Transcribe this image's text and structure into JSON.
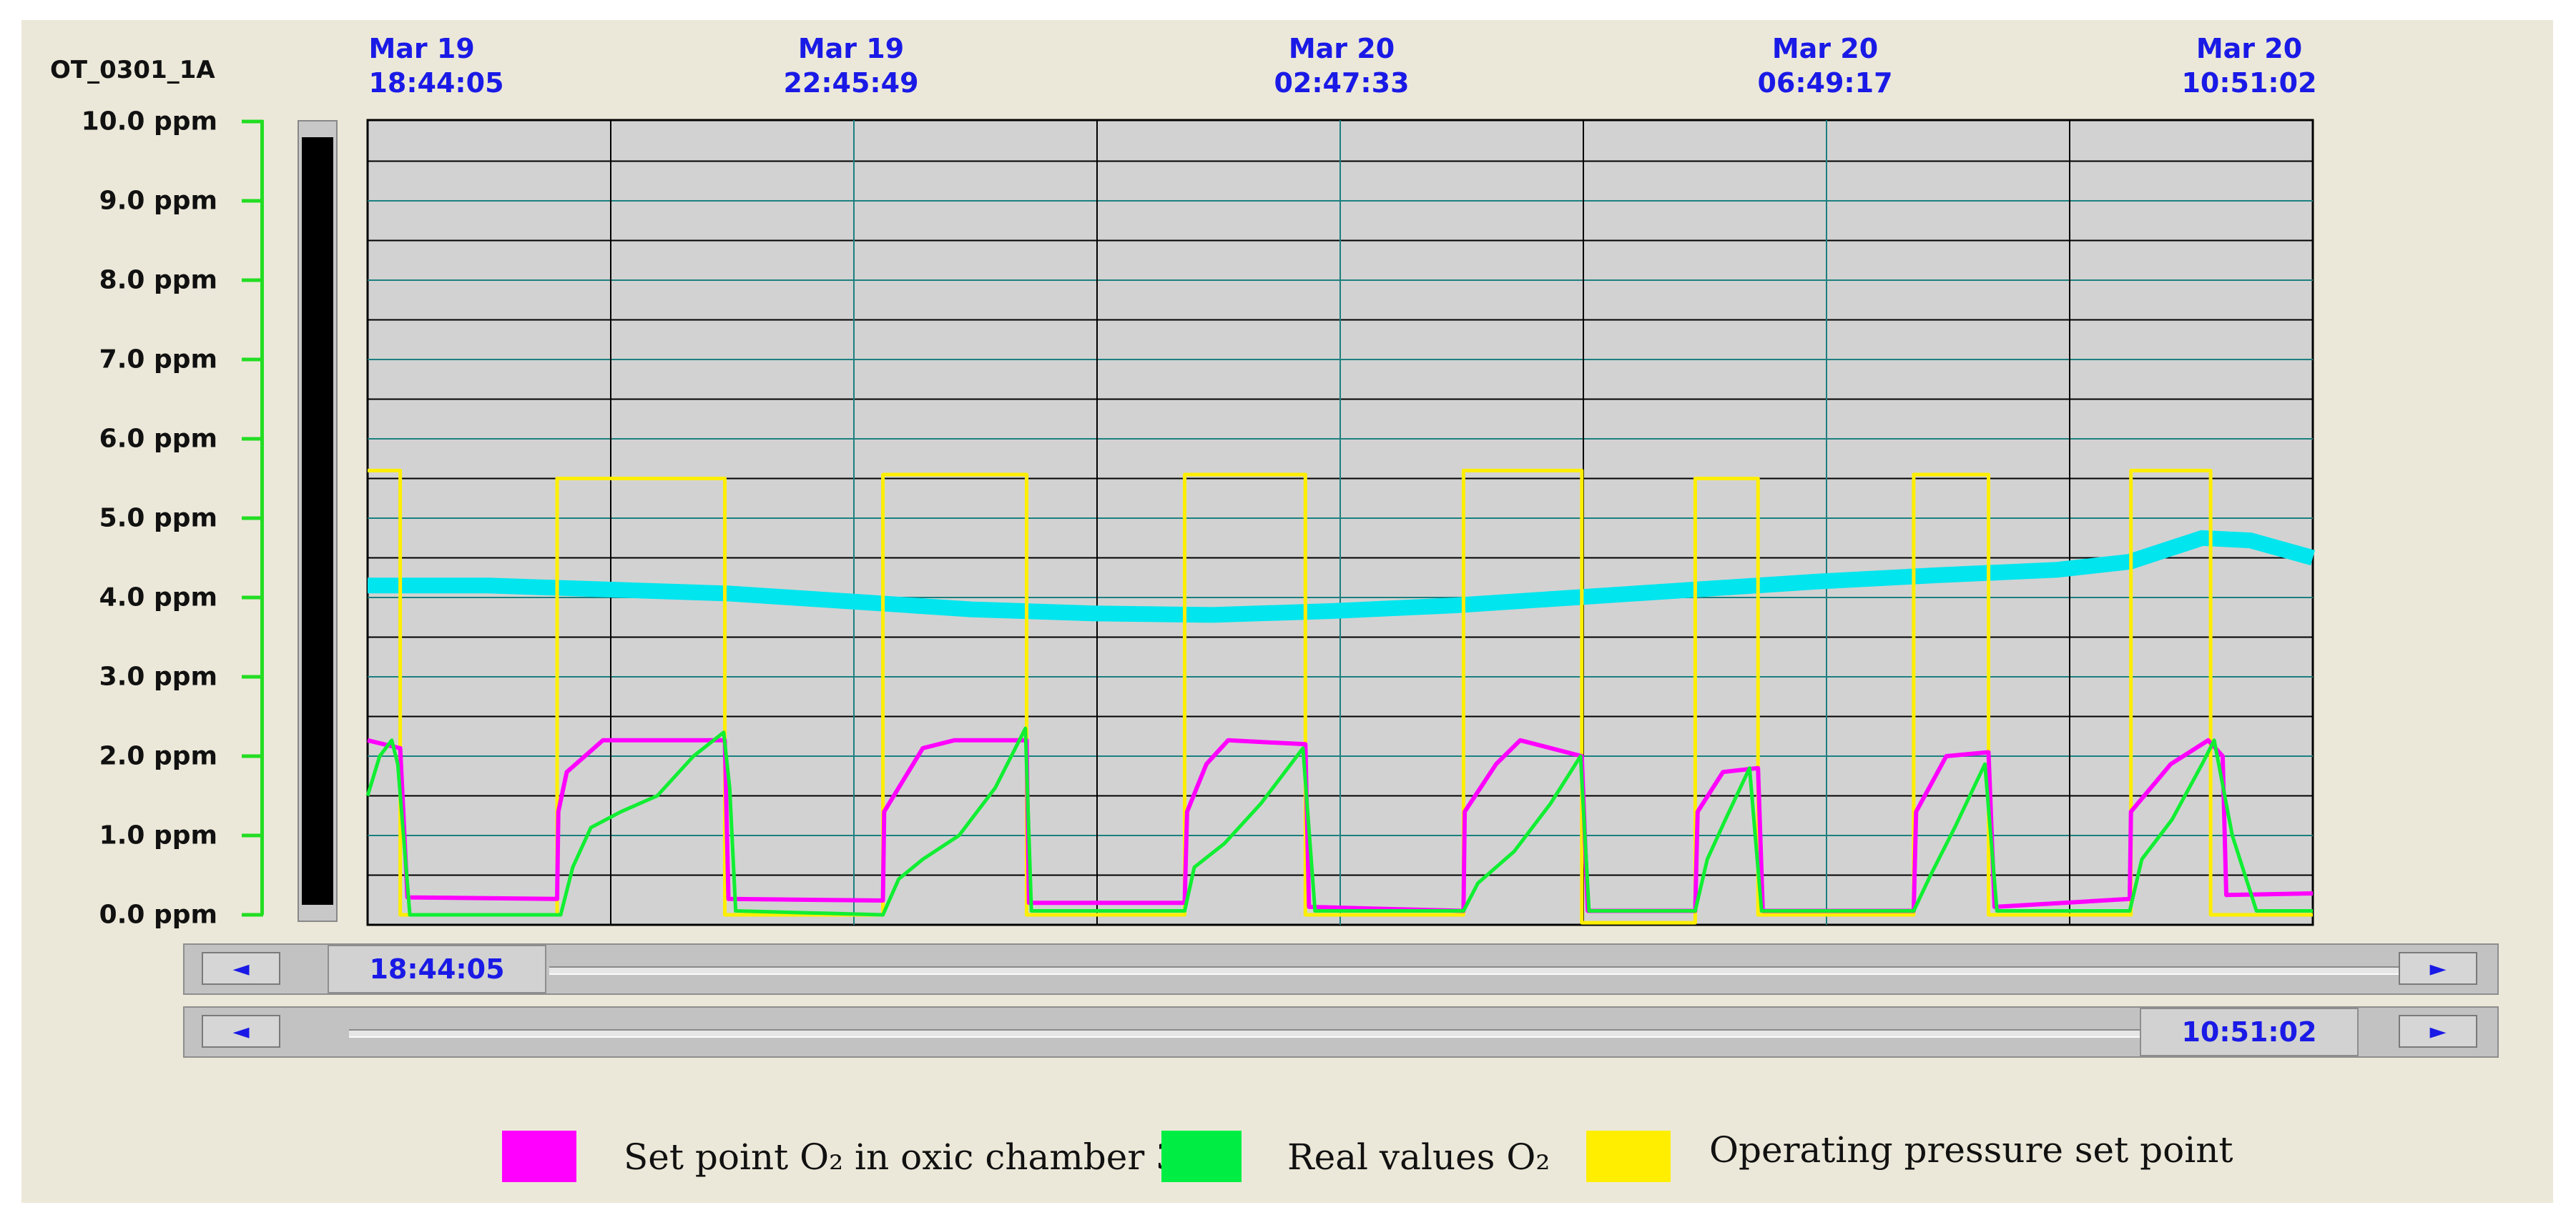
{
  "window": {
    "tag": "OT_0301_1A"
  },
  "y_axis_labels": [
    "10.0 ppm",
    "9.0 ppm",
    "8.0 ppm",
    "7.0 ppm",
    "6.0 ppm",
    "5.0 ppm",
    "4.0 ppm",
    "3.0 ppm",
    "2.0 ppm",
    "1.0 ppm",
    "0.0 ppm"
  ],
  "x_axis_labels": [
    {
      "date": "Mar 19",
      "time": "18:44:05"
    },
    {
      "date": "Mar 19",
      "time": "22:45:49"
    },
    {
      "date": "Mar 20",
      "time": "02:47:33"
    },
    {
      "date": "Mar 20",
      "time": "06:49:17"
    },
    {
      "date": "Mar 20",
      "time": "10:51:02"
    }
  ],
  "scroll_start": {
    "time": "18:44:05",
    "left_arrow": "◄",
    "right_arrow": "►"
  },
  "scroll_end": {
    "time": "10:51:02",
    "left_arrow": "◄",
    "right_arrow": "►"
  },
  "legend": [
    {
      "label": "Set point O₂ in oxic chamber 3",
      "color": "#ff00ff"
    },
    {
      "label": "Real values O₂",
      "color": "#00ee44"
    },
    {
      "label": "Operating pressure set point",
      "color": "#ffee00"
    }
  ],
  "chart_data": {
    "type": "line",
    "x_unit": "hours since Mar 19 18:44:05",
    "xlim": [
      0,
      16.117
    ],
    "ylim": [
      0,
      10
    ],
    "ylabel_unit": "ppm",
    "grid": true,
    "colors": {
      "background": "#d2d2d2",
      "cyan": "#00e5ee",
      "magenta": "#ff00ff",
      "green": "#11ee33",
      "yellow": "#ffee00"
    },
    "series": [
      {
        "name": "Operating pressure set point",
        "color": "#ffee00",
        "x": [
          0,
          0.27,
          0.27,
          1.57,
          1.57,
          2.96,
          2.96,
          4.27,
          4.27,
          5.46,
          5.46,
          6.77,
          6.77,
          7.77,
          7.77,
          9.08,
          9.08,
          10.06,
          10.06,
          11.0,
          11.0,
          11.52,
          11.52,
          12.81,
          12.81,
          13.43,
          13.43,
          14.61,
          14.61,
          15.27,
          15.27,
          16.117
        ],
        "values": [
          5.6,
          5.6,
          0.0,
          0.0,
          5.5,
          5.5,
          0.0,
          0.0,
          5.55,
          5.55,
          0.0,
          0.0,
          5.55,
          5.55,
          0.0,
          0.0,
          5.6,
          5.6,
          -0.1,
          -0.1,
          5.5,
          5.5,
          0.0,
          0.0,
          5.55,
          5.55,
          0.0,
          0.0,
          5.6,
          5.6,
          0.0,
          0.0
        ]
      },
      {
        "name": "Set point O₂ in oxic chamber 3",
        "color": "#ff00ff",
        "x": [
          0,
          0.27,
          0.33,
          1.57,
          1.58,
          1.65,
          1.95,
          2.96,
          2.99,
          4.27,
          4.28,
          4.6,
          4.86,
          5.46,
          5.48,
          6.77,
          6.79,
          6.95,
          7.13,
          7.77,
          7.8,
          9.08,
          9.09,
          9.35,
          9.55,
          10.06,
          10.11,
          11.0,
          11.02,
          11.23,
          11.52,
          11.56,
          12.81,
          12.83,
          13.08,
          13.43,
          13.48,
          14.6,
          14.61,
          14.94,
          15.25,
          15.37,
          15.4,
          16.117
        ],
        "values": [
          2.2,
          2.1,
          0.22,
          0.2,
          1.3,
          1.8,
          2.2,
          2.2,
          0.2,
          0.18,
          1.3,
          2.1,
          2.2,
          2.2,
          0.15,
          0.15,
          1.3,
          1.9,
          2.2,
          2.15,
          0.1,
          0.05,
          1.3,
          1.9,
          2.2,
          2.0,
          0.05,
          0.05,
          1.3,
          1.8,
          1.85,
          0.05,
          0.05,
          1.3,
          2.0,
          2.05,
          0.1,
          0.2,
          1.3,
          1.9,
          2.2,
          2.0,
          0.25,
          0.27
        ]
      },
      {
        "name": "Real values O₂",
        "color": "#11ee33",
        "x": [
          0,
          0.1,
          0.2,
          0.25,
          0.35,
          1.6,
          1.7,
          1.85,
          2.1,
          2.4,
          2.7,
          2.95,
          3.0,
          3.05,
          4.27,
          4.4,
          4.6,
          4.9,
          5.2,
          5.45,
          5.5,
          6.77,
          6.85,
          7.1,
          7.4,
          7.75,
          7.85,
          9.08,
          9.2,
          9.5,
          9.8,
          10.05,
          10.12,
          11.0,
          11.1,
          11.25,
          11.45,
          11.55,
          12.81,
          12.95,
          13.15,
          13.4,
          13.5,
          14.6,
          14.7,
          14.95,
          15.2,
          15.3,
          15.45,
          15.65,
          16.117
        ],
        "values": [
          1.5,
          2.0,
          2.2,
          1.9,
          0.0,
          0.0,
          0.6,
          1.1,
          1.3,
          1.5,
          2.0,
          2.3,
          1.6,
          0.05,
          0.0,
          0.45,
          0.7,
          1.0,
          1.6,
          2.35,
          0.05,
          0.05,
          0.6,
          0.9,
          1.4,
          2.1,
          0.05,
          0.05,
          0.4,
          0.8,
          1.4,
          2.0,
          0.05,
          0.05,
          0.7,
          1.2,
          1.85,
          0.05,
          0.05,
          0.5,
          1.1,
          1.9,
          0.05,
          0.05,
          0.7,
          1.2,
          1.9,
          2.2,
          1.0,
          0.05,
          0.05
        ]
      },
      {
        "name": "",
        "color": "#00e5ee",
        "x": [
          0,
          1.0,
          2.0,
          3.0,
          4.0,
          5.0,
          6.0,
          7.0,
          8.0,
          9.0,
          10.0,
          11.0,
          12.0,
          13.0,
          14.0,
          14.6,
          15.2,
          15.6,
          16.117
        ],
        "values": [
          4.15,
          4.15,
          4.1,
          4.05,
          3.95,
          3.85,
          3.8,
          3.78,
          3.83,
          3.9,
          4.0,
          4.1,
          4.2,
          4.28,
          4.35,
          4.45,
          4.75,
          4.72,
          4.5
        ]
      }
    ]
  }
}
